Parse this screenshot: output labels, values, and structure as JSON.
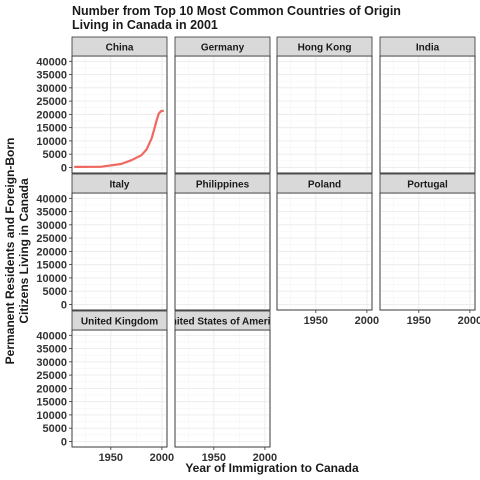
{
  "chart_data": {
    "type": "line",
    "title_lines": [
      "Number from Top 10 Most Common Countries of Origin",
      "Living in Canada in 2001"
    ],
    "xlabel": "Year of Immigration to Canada",
    "ylabel_lines": [
      "Permanent Residents and Foreign-Born",
      "Citizens Living in Canada"
    ],
    "xlim": [
      1912,
      2005
    ],
    "ylim": [
      -2100,
      42000
    ],
    "x_ticks": [
      1950,
      2000
    ],
    "y_ticks": [
      0,
      5000,
      10000,
      15000,
      20000,
      25000,
      30000,
      35000,
      40000
    ],
    "grid": true,
    "line_color": "#F0685F",
    "facets": [
      {
        "label": "China",
        "x": [
          1915,
          1940,
          1960,
          1970,
          1980,
          1985,
          1990,
          1993,
          1995,
          1997,
          1999,
          2001
        ],
        "y": [
          200,
          250,
          1300,
          2700,
          4600,
          6800,
          11000,
          15000,
          18000,
          20300,
          21200,
          21300
        ]
      },
      {
        "label": "Germany",
        "x": [],
        "y": []
      },
      {
        "label": "Hong Kong",
        "x": [],
        "y": []
      },
      {
        "label": "India",
        "x": [],
        "y": []
      },
      {
        "label": "Italy",
        "x": [],
        "y": []
      },
      {
        "label": "Philippines",
        "x": [],
        "y": []
      },
      {
        "label": "Poland",
        "x": [],
        "y": []
      },
      {
        "label": "Portugal",
        "x": [],
        "y": []
      },
      {
        "label": "United Kingdom",
        "x": [],
        "y": []
      },
      {
        "label": "United States of America",
        "x": [],
        "y": []
      }
    ]
  }
}
